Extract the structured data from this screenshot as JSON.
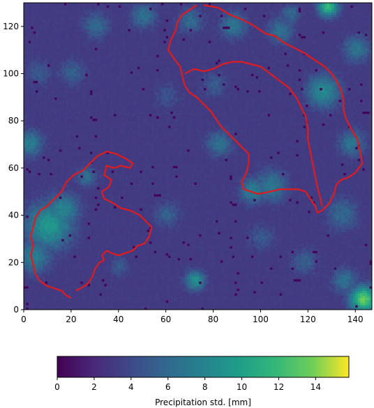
{
  "chart_data": {
    "type": "heatmap",
    "title": "",
    "xlabel": "",
    "ylabel": "",
    "xlim": [
      0,
      147
    ],
    "ylim": [
      0,
      130
    ],
    "x_ticks": [
      0,
      20,
      40,
      60,
      80,
      100,
      120,
      140
    ],
    "y_ticks": [
      0,
      20,
      40,
      60,
      80,
      100,
      120
    ],
    "grid": false,
    "colormap": "viridis",
    "colorbar": {
      "label": "Precipitation std. [mm]",
      "range": [
        0,
        15.8
      ],
      "ticks": [
        0,
        2,
        4,
        6,
        8,
        10,
        12,
        14
      ],
      "orientation": "horizontal",
      "placement": "bottom"
    },
    "background_level": 2.5,
    "hotspots": [
      {
        "x": 10,
        "y": 35,
        "value": 9.5,
        "spread": 7
      },
      {
        "x": 4,
        "y": 22,
        "value": 7.5,
        "spread": 5
      },
      {
        "x": 2,
        "y": 70,
        "value": 7.5,
        "spread": 4
      },
      {
        "x": 16,
        "y": 42,
        "value": 8,
        "spread": 5
      },
      {
        "x": 143,
        "y": 4,
        "value": 13.5,
        "spread": 4
      },
      {
        "x": 128,
        "y": 128,
        "value": 12,
        "spread": 3
      },
      {
        "x": 126,
        "y": 92,
        "value": 8.5,
        "spread": 5
      },
      {
        "x": 72,
        "y": 12,
        "value": 9,
        "spread": 3
      },
      {
        "x": 96,
        "y": 50,
        "value": 7.5,
        "spread": 4
      },
      {
        "x": 104,
        "y": 52,
        "value": 7,
        "spread": 5
      },
      {
        "x": 82,
        "y": 70,
        "value": 6.5,
        "spread": 4
      },
      {
        "x": 50,
        "y": 124,
        "value": 6.5,
        "spread": 4
      },
      {
        "x": 30,
        "y": 120,
        "value": 6,
        "spread": 4
      },
      {
        "x": 140,
        "y": 110,
        "value": 7,
        "spread": 4
      },
      {
        "x": 138,
        "y": 70,
        "value": 7,
        "spread": 4
      },
      {
        "x": 134,
        "y": 40,
        "value": 6,
        "spread": 5
      },
      {
        "x": 88,
        "y": 120,
        "value": 7,
        "spread": 4
      },
      {
        "x": 108,
        "y": 118,
        "value": 6.5,
        "spread": 4
      },
      {
        "x": 26,
        "y": 56,
        "value": 6.5,
        "spread": 3
      },
      {
        "x": 70,
        "y": 122,
        "value": 6,
        "spread": 4
      },
      {
        "x": 60,
        "y": 40,
        "value": 5.5,
        "spread": 4
      },
      {
        "x": 118,
        "y": 20,
        "value": 5.5,
        "spread": 4
      },
      {
        "x": 100,
        "y": 30,
        "value": 5,
        "spread": 4
      },
      {
        "x": 6,
        "y": 100,
        "value": 5,
        "spread": 4
      },
      {
        "x": 20,
        "y": 100,
        "value": 5.5,
        "spread": 4
      },
      {
        "x": 80,
        "y": 95,
        "value": 5,
        "spread": 4
      },
      {
        "x": 40,
        "y": 18,
        "value": 5,
        "spread": 3
      },
      {
        "x": 135,
        "y": 12,
        "value": 6.5,
        "spread": 4
      },
      {
        "x": 60,
        "y": 90,
        "value": 4.5,
        "spread": 4
      },
      {
        "x": 112,
        "y": 125,
        "value": 6,
        "spread": 3
      }
    ],
    "outlines": [
      {
        "color": "#e31a1c",
        "points": [
          [
            20,
            5
          ],
          [
            18,
            6
          ],
          [
            16,
            8
          ],
          [
            13,
            9
          ],
          [
            10,
            10
          ],
          [
            7,
            12
          ],
          [
            5,
            15
          ],
          [
            4,
            19
          ],
          [
            3,
            23
          ],
          [
            4,
            27
          ],
          [
            3,
            31
          ],
          [
            4,
            35
          ],
          [
            5,
            39
          ],
          [
            7,
            42
          ],
          [
            10,
            44
          ],
          [
            13,
            47
          ],
          [
            16,
            50
          ],
          [
            18,
            54
          ],
          [
            21,
            57
          ],
          [
            25,
            59
          ],
          [
            28,
            62
          ],
          [
            31,
            65
          ],
          [
            35,
            67
          ],
          [
            39,
            66
          ],
          [
            43,
            64
          ],
          [
            46,
            62
          ],
          [
            45,
            60
          ],
          [
            41,
            61
          ],
          [
            38,
            60
          ],
          [
            35,
            61
          ],
          [
            34,
            57
          ],
          [
            37,
            55
          ],
          [
            36,
            52
          ],
          [
            33,
            50
          ],
          [
            34,
            47
          ],
          [
            38,
            45
          ],
          [
            41,
            43
          ],
          [
            45,
            42
          ],
          [
            49,
            40
          ],
          [
            52,
            37
          ],
          [
            54,
            35
          ],
          [
            53,
            31
          ],
          [
            51,
            28
          ],
          [
            48,
            27
          ],
          [
            46,
            25
          ],
          [
            43,
            24
          ],
          [
            40,
            23
          ],
          [
            37,
            24
          ],
          [
            35,
            25
          ],
          [
            33,
            23
          ],
          [
            34,
            21
          ],
          [
            32,
            20
          ],
          [
            30,
            17
          ],
          [
            29,
            14
          ],
          [
            27,
            11
          ],
          [
            24,
            9
          ],
          [
            22,
            8
          ]
        ]
      },
      {
        "color": "#e31a1c",
        "points": [
          [
            76,
            129
          ],
          [
            82,
            128
          ],
          [
            87,
            125
          ],
          [
            92,
            123
          ],
          [
            96,
            121
          ],
          [
            99,
            119
          ],
          [
            102,
            117
          ],
          [
            106,
            116
          ],
          [
            110,
            113
          ],
          [
            114,
            111
          ],
          [
            118,
            109
          ],
          [
            121,
            107
          ],
          [
            124,
            105
          ],
          [
            127,
            103
          ],
          [
            130,
            100
          ],
          [
            132,
            97
          ],
          [
            134,
            93
          ],
          [
            135,
            89
          ],
          [
            135,
            85
          ],
          [
            136,
            81
          ],
          [
            138,
            77
          ],
          [
            141,
            72
          ],
          [
            142,
            67
          ],
          [
            143,
            62
          ],
          [
            140,
            58
          ],
          [
            137,
            56
          ],
          [
            134,
            55
          ],
          [
            132,
            53
          ],
          [
            131,
            49
          ],
          [
            129,
            45
          ],
          [
            126,
            42
          ],
          [
            124,
            41
          ],
          [
            123,
            44
          ],
          [
            121,
            47
          ],
          [
            119,
            50
          ],
          [
            116,
            51
          ],
          [
            112,
            51
          ],
          [
            108,
            51
          ],
          [
            104,
            50
          ],
          [
            99,
            49
          ],
          [
            96,
            50
          ],
          [
            93,
            51
          ],
          [
            92,
            54
          ],
          [
            94,
            58
          ],
          [
            95,
            62
          ],
          [
            95,
            66
          ],
          [
            92,
            69
          ],
          [
            89,
            72
          ],
          [
            86,
            75
          ],
          [
            83,
            78
          ],
          [
            81,
            81
          ],
          [
            79,
            84
          ],
          [
            76,
            87
          ],
          [
            73,
            90
          ],
          [
            70,
            92
          ],
          [
            68,
            95
          ],
          [
            67,
            99
          ],
          [
            66,
            103
          ],
          [
            63,
            107
          ],
          [
            61,
            110
          ],
          [
            62,
            114
          ],
          [
            64,
            118
          ],
          [
            65,
            122
          ],
          [
            67,
            125
          ],
          [
            70,
            127
          ],
          [
            73,
            129
          ]
        ]
      },
      {
        "color": "#e31a1c",
        "points": [
          [
            68,
            100
          ],
          [
            72,
            102
          ],
          [
            76,
            101
          ],
          [
            80,
            102
          ],
          [
            84,
            104
          ],
          [
            88,
            105
          ],
          [
            92,
            105
          ],
          [
            96,
            104
          ],
          [
            100,
            103
          ],
          [
            104,
            100
          ],
          [
            108,
            97
          ],
          [
            112,
            94
          ],
          [
            115,
            90
          ],
          [
            117,
            86
          ],
          [
            119,
            82
          ],
          [
            120,
            77
          ],
          [
            120,
            72
          ],
          [
            121,
            67
          ],
          [
            122,
            62
          ],
          [
            123,
            57
          ],
          [
            124,
            52
          ],
          [
            125,
            48
          ],
          [
            126,
            44
          ]
        ]
      }
    ]
  }
}
